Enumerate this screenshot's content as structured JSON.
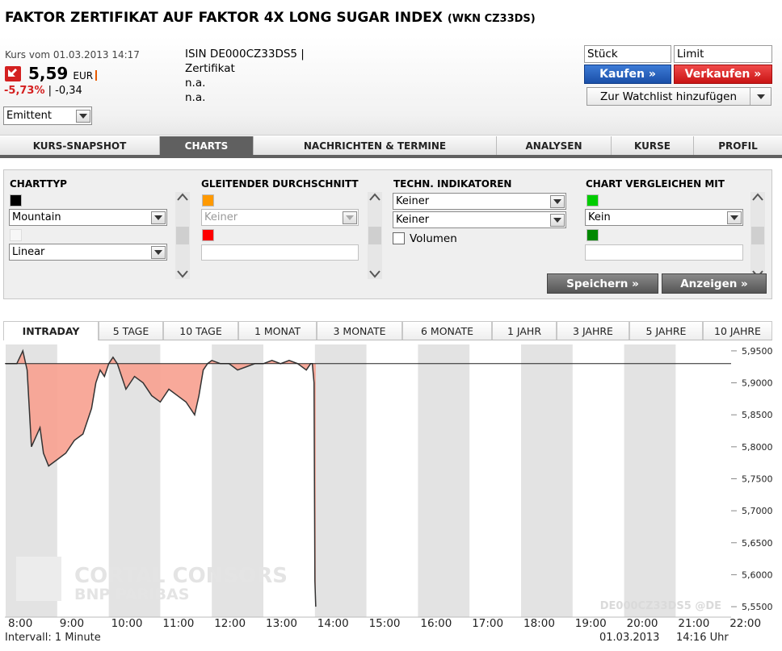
{
  "title": {
    "main": "FAKTOR ZERTIFIKAT AUF FAKTOR 4X LONG SUGAR INDEX",
    "wkn": "(WKN CZ33DS)"
  },
  "quote": {
    "kurs_label": "Kurs vom 01.03.2013 14:17",
    "price": "5,59",
    "currency": "EUR",
    "change_pct": "-5,73%",
    "change_sep": "|",
    "change_abs": "-0,34",
    "source": "Emittent"
  },
  "info": {
    "isin": "ISIN DE000CZ33DS5 |",
    "type": "Zertifikat",
    "line3": "n.a.",
    "line4": "n.a."
  },
  "order": {
    "stueck": "Stück",
    "limit": "Limit",
    "kaufen": "Kaufen »",
    "verkaufen": "Verkaufen »",
    "watchlist": "Zur Watchlist hinzufügen"
  },
  "tabs": [
    "KURS-SNAPSHOT",
    "CHARTS",
    "NACHRICHTEN & TERMINE",
    "ANALYSEN",
    "KURSE",
    "PROFIL"
  ],
  "panel": {
    "charttyp": {
      "heading": "CHARTTYP",
      "type": "Mountain",
      "scale": "Linear"
    },
    "gd": {
      "heading": "GLEITENDER DURCHSCHNITT",
      "value": "Keiner"
    },
    "techn": {
      "heading": "TECHN. INDIKATOREN",
      "ind1": "Keiner",
      "ind2": "Keiner",
      "volumen": "Volumen"
    },
    "compare": {
      "heading": "CHART VERGLEICHEN MIT",
      "value": "Kein"
    },
    "speichern": "Speichern »",
    "anzeigen": "Anzeigen »"
  },
  "colors": {
    "charttyp_swatch": "#000000",
    "gd_swatch1": "#ff9900",
    "gd_swatch2": "#ff0000",
    "cmp_swatch1": "#00cc00",
    "cmp_swatch2": "#008800",
    "area_fill": "#f7a08f"
  },
  "periods": [
    "INTRADAY",
    "5 TAGE",
    "10 TAGE",
    "1 MONAT",
    "3 MONATE",
    "6 MONATE",
    "1 JAHR",
    "3 JAHRE",
    "5 JAHRE",
    "10 JAHRE"
  ],
  "chart_footer": {
    "interval": "Intervall: 1 Minute",
    "date": "01.03.2013",
    "time": "14:16 Uhr"
  },
  "watermark": {
    "line1": "CORTAL CONSORS",
    "line2": "BNP PARIBAS",
    "isin": "DE000CZ33DS5 @DE"
  },
  "chart_data": {
    "type": "area",
    "x_ticks": [
      "8:00",
      "9:00",
      "10:00",
      "11:00",
      "12:00",
      "13:00",
      "14:00",
      "15:00",
      "16:00",
      "17:00",
      "18:00",
      "19:00",
      "20:00",
      "21:00",
      "22:00"
    ],
    "y_ticks": [
      "5,9500",
      "5,9000",
      "5,8500",
      "5,8000",
      "5,7500",
      "5,7000",
      "5,6500",
      "5,6000",
      "5,5500"
    ],
    "ylim": [
      5.54,
      5.96
    ],
    "reference_line": 5.93,
    "series": [
      {
        "x": [
          "8:00",
          "8:13",
          "8:20",
          "8:25",
          "8:30",
          "8:40",
          "8:44",
          "8:50",
          "9:00",
          "9:10",
          "9:20",
          "9:30",
          "9:40",
          "9:45",
          "9:50",
          "9:55",
          "10:00",
          "10:05",
          "10:10",
          "10:15",
          "10:20",
          "10:30",
          "10:40",
          "10:50",
          "11:00",
          "11:10",
          "11:20",
          "11:30",
          "11:40",
          "11:45",
          "11:50",
          "11:55",
          "12:00",
          "12:10",
          "12:20",
          "12:30",
          "12:40",
          "12:50",
          "13:00",
          "13:10",
          "13:20",
          "13:30",
          "13:40",
          "13:50",
          "13:55",
          "13:57",
          "13:59",
          "14:00",
          "14:01"
        ],
        "values": [
          5.93,
          5.93,
          5.95,
          5.92,
          5.8,
          5.83,
          5.79,
          5.77,
          5.78,
          5.79,
          5.81,
          5.82,
          5.86,
          5.9,
          5.92,
          5.91,
          5.93,
          5.94,
          5.93,
          5.91,
          5.89,
          5.91,
          5.9,
          5.88,
          5.87,
          5.89,
          5.88,
          5.87,
          5.85,
          5.88,
          5.92,
          5.93,
          5.935,
          5.93,
          5.93,
          5.92,
          5.925,
          5.93,
          5.93,
          5.935,
          5.93,
          5.935,
          5.93,
          5.92,
          5.93,
          5.93,
          5.9,
          5.59,
          5.55
        ]
      }
    ]
  }
}
